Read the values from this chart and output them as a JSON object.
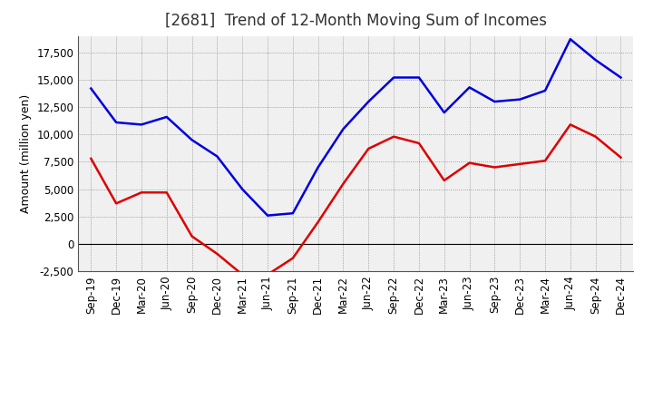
{
  "title": "[2681]  Trend of 12-Month Moving Sum of Incomes",
  "ylabel": "Amount (million yen)",
  "background_color": "#ffffff",
  "plot_bg_color": "#f0f0f0",
  "grid_color": "#888888",
  "x_labels": [
    "Sep-19",
    "Dec-19",
    "Mar-20",
    "Jun-20",
    "Sep-20",
    "Dec-20",
    "Mar-21",
    "Jun-21",
    "Sep-21",
    "Dec-21",
    "Mar-22",
    "Jun-22",
    "Sep-22",
    "Dec-22",
    "Mar-23",
    "Jun-23",
    "Sep-23",
    "Dec-23",
    "Mar-24",
    "Jun-24",
    "Sep-24",
    "Dec-24"
  ],
  "ordinary_income": [
    14200,
    11100,
    10900,
    11600,
    9500,
    8000,
    5000,
    2600,
    2800,
    7000,
    10500,
    13000,
    15200,
    15200,
    12000,
    14300,
    13000,
    13200,
    14000,
    18700,
    16800,
    15200
  ],
  "net_income": [
    7800,
    3700,
    4700,
    4700,
    700,
    -900,
    -2800,
    -2800,
    -1300,
    2000,
    5500,
    8700,
    9800,
    9200,
    5800,
    7400,
    7000,
    7300,
    7600,
    10900,
    9800,
    7900
  ],
  "ordinary_income_color": "#0000dd",
  "net_income_color": "#dd0000",
  "ylim": [
    -2500,
    19000
  ],
  "yticks": [
    -2500,
    0,
    2500,
    5000,
    7500,
    10000,
    12500,
    15000,
    17500
  ],
  "line_width": 1.8,
  "title_fontsize": 12,
  "legend_fontsize": 10,
  "axis_label_fontsize": 9,
  "tick_fontsize": 8.5
}
